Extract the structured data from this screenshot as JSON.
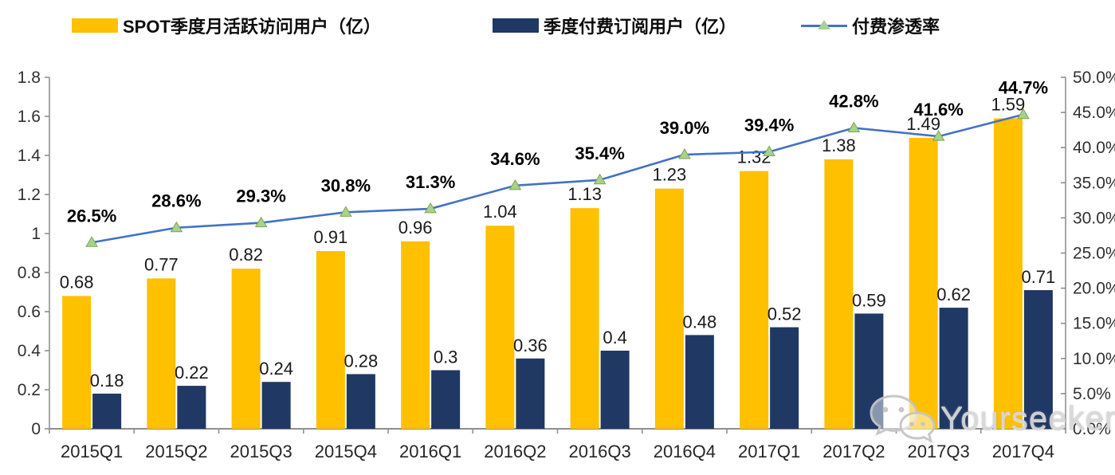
{
  "legend": {
    "items": [
      {
        "label": "SPOT季度月活跃访问用户（亿）",
        "type": "bar",
        "color": "#FFC000"
      },
      {
        "label": "季度付费订阅用户（亿）",
        "type": "bar",
        "color": "#1F3864"
      },
      {
        "label": "付费渗透率",
        "type": "line",
        "color": "#4472C4",
        "marker_color": "#A9D18E"
      }
    ]
  },
  "watermark": {
    "text": "Yourseeker",
    "icon": "wechat-chat-bubbles-icon"
  },
  "chart_data": {
    "type": "bar+line combo",
    "title": "",
    "categories": [
      "2015Q1",
      "2015Q2",
      "2015Q3",
      "2015Q4",
      "2016Q1",
      "2016Q2",
      "2016Q3",
      "2016Q4",
      "2017Q1",
      "2017Q2",
      "2017Q3",
      "2017Q4"
    ],
    "series": [
      {
        "name": "SPOT季度月活跃访问用户（亿）",
        "type": "bar",
        "axis": "left",
        "color": "#FFC000",
        "values": [
          0.68,
          0.77,
          0.82,
          0.91,
          0.96,
          1.04,
          1.13,
          1.23,
          1.32,
          1.38,
          1.49,
          1.59
        ],
        "labels": [
          "0.68",
          "0.77",
          "0.82",
          "0.91",
          "0.96",
          "1.04",
          "1.13",
          "1.23",
          "1.32",
          "1.38",
          "1.49",
          "1.59"
        ]
      },
      {
        "name": "季度付费订阅用户（亿）",
        "type": "bar",
        "axis": "left",
        "color": "#1F3864",
        "values": [
          0.18,
          0.22,
          0.24,
          0.28,
          0.3,
          0.36,
          0.4,
          0.48,
          0.52,
          0.59,
          0.62,
          0.71
        ],
        "labels": [
          "0.18",
          "0.22",
          "0.24",
          "0.28",
          "0.3",
          "0.36",
          "0.4",
          "0.48",
          "0.52",
          "0.59",
          "0.62",
          "0.71"
        ]
      },
      {
        "name": "付费渗透率",
        "type": "line",
        "axis": "right",
        "color": "#4472C4",
        "marker": "triangle",
        "marker_color": "#A9D18E",
        "marker_stroke": "#7FA650",
        "values": [
          26.5,
          28.6,
          29.3,
          30.8,
          31.3,
          34.6,
          35.4,
          39.0,
          39.4,
          42.8,
          41.6,
          44.7
        ],
        "labels": [
          "26.5%",
          "28.6%",
          "29.3%",
          "30.8%",
          "31.3%",
          "34.6%",
          "35.4%",
          "39.0%",
          "39.4%",
          "42.8%",
          "41.6%",
          "44.7%"
        ]
      }
    ],
    "left_axis": {
      "min": 0,
      "max": 1.8,
      "step": 0.2,
      "tick_labels": [
        "1.8",
        "1.6",
        "1.4",
        "1.2",
        "1",
        "0.8",
        "0.6",
        "0.4",
        "0.2",
        "0"
      ]
    },
    "right_axis": {
      "min": 0,
      "max": 50,
      "step": 5,
      "tick_labels": [
        "50.0%",
        "45.0%",
        "40.0%",
        "35.0%",
        "30.0%",
        "25.0%",
        "20.0%",
        "15.0%",
        "10.0%",
        "5.0%",
        "0.0%"
      ]
    },
    "grid": false,
    "legend_position": "top"
  }
}
